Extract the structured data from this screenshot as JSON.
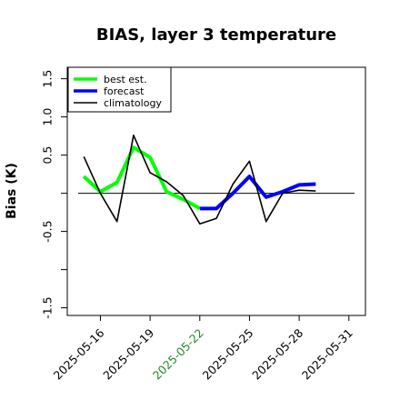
{
  "chart_data": {
    "type": "line",
    "title": "BIAS, layer 3 temperature",
    "xlabel": "",
    "ylabel": "Bias (K)",
    "x_ticks": [
      "2025-05-16",
      "2025-05-19",
      "2025-05-22",
      "2025-05-25",
      "2025-05-28",
      "2025-05-31"
    ],
    "x_tick_colors": [
      "#000000",
      "#000000",
      "#228b22",
      "#000000",
      "#000000",
      "#000000"
    ],
    "y_ticks": [
      "-1.5",
      "-0.5",
      "0.5",
      "1.0",
      "1.5"
    ],
    "ylim": [
      -1.6,
      1.65
    ],
    "xlim": [
      "2025-05-14",
      "2025-06-01"
    ],
    "grid": false,
    "legend_position": "top-left",
    "reference_line": {
      "y": 0,
      "color": "#000000"
    },
    "series": [
      {
        "name": "best est.",
        "color": "#00ff00",
        "x": [
          "2025-05-15",
          "2025-05-16",
          "2025-05-17",
          "2025-05-18",
          "2025-05-19",
          "2025-05-20",
          "2025-05-21",
          "2025-05-22"
        ],
        "values": [
          0.22,
          0.02,
          0.14,
          0.6,
          0.47,
          0.02,
          -0.08,
          -0.2
        ]
      },
      {
        "name": "forecast",
        "color": "#0000ff",
        "x": [
          "2025-05-22",
          "2025-05-23",
          "2025-05-24",
          "2025-05-25",
          "2025-05-26",
          "2025-05-27",
          "2025-05-28",
          "2025-05-29"
        ],
        "values": [
          -0.2,
          -0.2,
          0.0,
          0.22,
          -0.05,
          0.02,
          0.11,
          0.12
        ]
      },
      {
        "name": "climatology",
        "color": "#000000",
        "x": [
          "2025-05-15",
          "2025-05-16",
          "2025-05-17",
          "2025-05-18",
          "2025-05-19",
          "2025-05-20",
          "2025-05-21",
          "2025-05-22",
          "2025-05-23",
          "2025-05-24",
          "2025-05-25",
          "2025-05-26",
          "2025-05-27",
          "2025-05-28",
          "2025-05-29"
        ],
        "values": [
          0.48,
          0.0,
          -0.37,
          0.76,
          0.27,
          0.15,
          -0.03,
          -0.4,
          -0.33,
          0.12,
          0.42,
          -0.37,
          0.0,
          0.04,
          0.03
        ]
      }
    ]
  }
}
